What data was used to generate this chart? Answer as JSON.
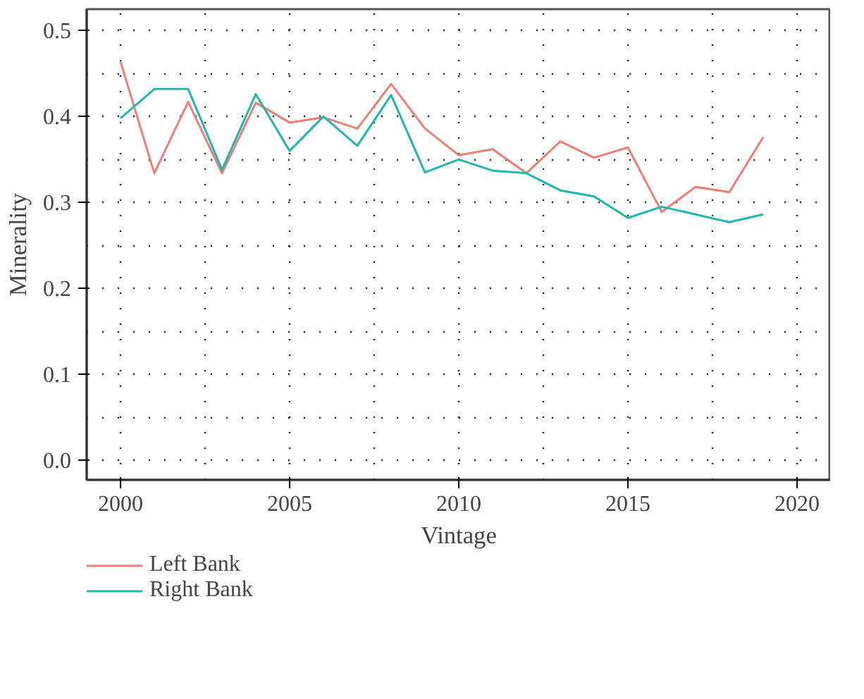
{
  "chart_data": {
    "type": "line",
    "xlabel": "Vintage",
    "ylabel": "Minerality",
    "x": [
      2000,
      2001,
      2002,
      2003,
      2004,
      2005,
      2006,
      2007,
      2008,
      2009,
      2010,
      2011,
      2012,
      2013,
      2014,
      2015,
      2016,
      2017,
      2018,
      2019
    ],
    "series": [
      {
        "name": "Left Bank",
        "color": "#f07c78",
        "values": [
          0.464,
          0.334,
          0.417,
          0.334,
          0.416,
          0.393,
          0.399,
          0.386,
          0.438,
          0.386,
          0.355,
          0.362,
          0.334,
          0.371,
          0.352,
          0.364,
          0.289,
          0.318,
          0.312,
          0.376
        ]
      },
      {
        "name": "Right Bank",
        "color": "#1fb8ac",
        "values": [
          0.398,
          0.432,
          0.432,
          0.338,
          0.426,
          0.36,
          0.4,
          0.366,
          0.425,
          0.335,
          0.35,
          0.337,
          0.334,
          0.314,
          0.307,
          0.282,
          0.295,
          0.286,
          0.277,
          0.286
        ]
      }
    ],
    "xlim": [
      1999.0,
      2021.0
    ],
    "ylim": [
      -0.023,
      0.525
    ],
    "xticks": [
      2000,
      {
        "value": 2002.5,
        "label": null
      },
      2005,
      {
        "value": 2007.5,
        "label": null
      },
      2010,
      {
        "value": 2012.5,
        "label": null
      },
      2015,
      {
        "value": 2017.5,
        "label": null
      },
      2020
    ],
    "yticks": [
      {
        "value": 0.0,
        "label": "0.0"
      },
      {
        "value": 0.05,
        "label": null
      },
      {
        "value": 0.1,
        "label": "0.1"
      },
      {
        "value": 0.15,
        "label": null
      },
      {
        "value": 0.2,
        "label": "0.2"
      },
      {
        "value": 0.25,
        "label": null
      },
      {
        "value": 0.3,
        "label": "0.3"
      },
      {
        "value": 0.35,
        "label": null
      },
      {
        "value": 0.4,
        "label": "0.4"
      },
      {
        "value": 0.45,
        "label": null
      },
      {
        "value": 0.5,
        "label": "0.5"
      }
    ],
    "grid": true,
    "legend": "bottom left",
    "line_style": "solid"
  }
}
